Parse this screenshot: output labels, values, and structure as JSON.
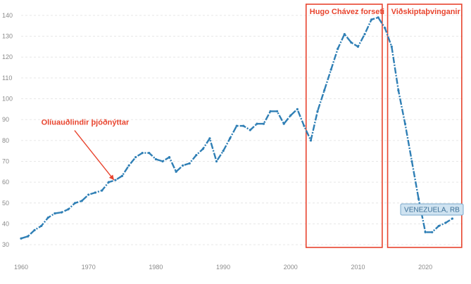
{
  "chart_data": {
    "type": "line",
    "title": "",
    "xlabel": "",
    "ylabel": "",
    "xlim": [
      1960,
      2025
    ],
    "ylim": [
      27,
      143
    ],
    "x_ticks": [
      1960,
      1970,
      1980,
      1990,
      2000,
      2010,
      2020
    ],
    "y_ticks": [
      30,
      40,
      50,
      60,
      70,
      80,
      90,
      100,
      110,
      120,
      130,
      140
    ],
    "grid": true,
    "series": [
      {
        "name": "VENEZUELA, RB",
        "color": "#2f7fb5",
        "points": [
          [
            1960,
            33
          ],
          [
            1961,
            34
          ],
          [
            1962,
            37
          ],
          [
            1963,
            39
          ],
          [
            1964,
            43
          ],
          [
            1965,
            45
          ],
          [
            1966,
            45.5
          ],
          [
            1967,
            47
          ],
          [
            1968,
            50
          ],
          [
            1969,
            51
          ],
          [
            1970,
            54
          ],
          [
            1971,
            55
          ],
          [
            1972,
            56
          ],
          [
            1973,
            60
          ],
          [
            1974,
            61
          ],
          [
            1975,
            63
          ],
          [
            1976,
            68
          ],
          [
            1977,
            72
          ],
          [
            1978,
            74
          ],
          [
            1979,
            74
          ],
          [
            1980,
            71
          ],
          [
            1981,
            70
          ],
          [
            1982,
            72
          ],
          [
            1983,
            65
          ],
          [
            1984,
            68
          ],
          [
            1985,
            69
          ],
          [
            1986,
            73
          ],
          [
            1987,
            76
          ],
          [
            1988,
            81
          ],
          [
            1989,
            70
          ],
          [
            1990,
            75
          ],
          [
            1991,
            81
          ],
          [
            1992,
            87
          ],
          [
            1993,
            87
          ],
          [
            1994,
            85
          ],
          [
            1995,
            88
          ],
          [
            1996,
            88
          ],
          [
            1997,
            94
          ],
          [
            1998,
            94
          ],
          [
            1999,
            88
          ],
          [
            2000,
            92
          ],
          [
            2001,
            95
          ],
          [
            2002,
            87
          ],
          [
            2003,
            80
          ],
          [
            2004,
            94
          ],
          [
            2005,
            104
          ],
          [
            2006,
            114
          ],
          [
            2007,
            124
          ],
          [
            2008,
            131
          ],
          [
            2009,
            127
          ],
          [
            2010,
            125
          ],
          [
            2011,
            131
          ],
          [
            2012,
            138
          ],
          [
            2013,
            139
          ],
          [
            2014,
            134
          ],
          [
            2015,
            125
          ],
          [
            2016,
            104
          ],
          [
            2017,
            88
          ],
          [
            2018,
            70
          ],
          [
            2019,
            52
          ],
          [
            2020,
            36
          ],
          [
            2021,
            36
          ],
          [
            2022,
            39
          ],
          [
            2023,
            40.5
          ],
          [
            2024,
            42.5
          ]
        ]
      }
    ],
    "annotations": [
      {
        "label": "Olíuauðlindir þjóðnýttar",
        "type": "arrow",
        "target": [
          1974,
          60
        ],
        "label_at": [
          1969.5,
          87.5
        ],
        "color": "#e8442e"
      },
      {
        "label": "Hugo Chávez forseti",
        "type": "box",
        "x_range": [
          2002.3,
          2013.6
        ],
        "color": "#e8442e"
      },
      {
        "label": "Viðskiptaþvinganir",
        "type": "box",
        "x_range": [
          2014.4,
          2025.4
        ],
        "color": "#e8442e"
      }
    ]
  }
}
